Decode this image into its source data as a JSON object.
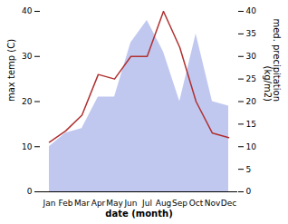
{
  "chart_data": {
    "type": "line",
    "categories": [
      "Jan",
      "Feb",
      "Mar",
      "Apr",
      "May",
      "Jun",
      "Jul",
      "Aug",
      "Sep",
      "Oct",
      "Nov",
      "Dec"
    ],
    "xlabel": "date (month)",
    "ylabel": "max temp (C)",
    "y2label": "med. precipitation\n(kg/m2)",
    "ylim": [
      0,
      40
    ],
    "yticks": [
      0,
      10,
      20,
      30,
      40
    ],
    "y2lim": [
      0,
      40
    ],
    "y2ticks": [
      0,
      5,
      10,
      15,
      20,
      25,
      30,
      35,
      40
    ],
    "series": [
      {
        "type": "area",
        "color": "#c0c8f0",
        "axis": "y2",
        "values": [
          10,
          13,
          14,
          21,
          21,
          33,
          38,
          31,
          20,
          35,
          20,
          19
        ]
      },
      {
        "type": "line",
        "color": "#b03030",
        "values": [
          11,
          13.5,
          17,
          26,
          25,
          30,
          30,
          40,
          32,
          20,
          13,
          12
        ]
      }
    ]
  }
}
